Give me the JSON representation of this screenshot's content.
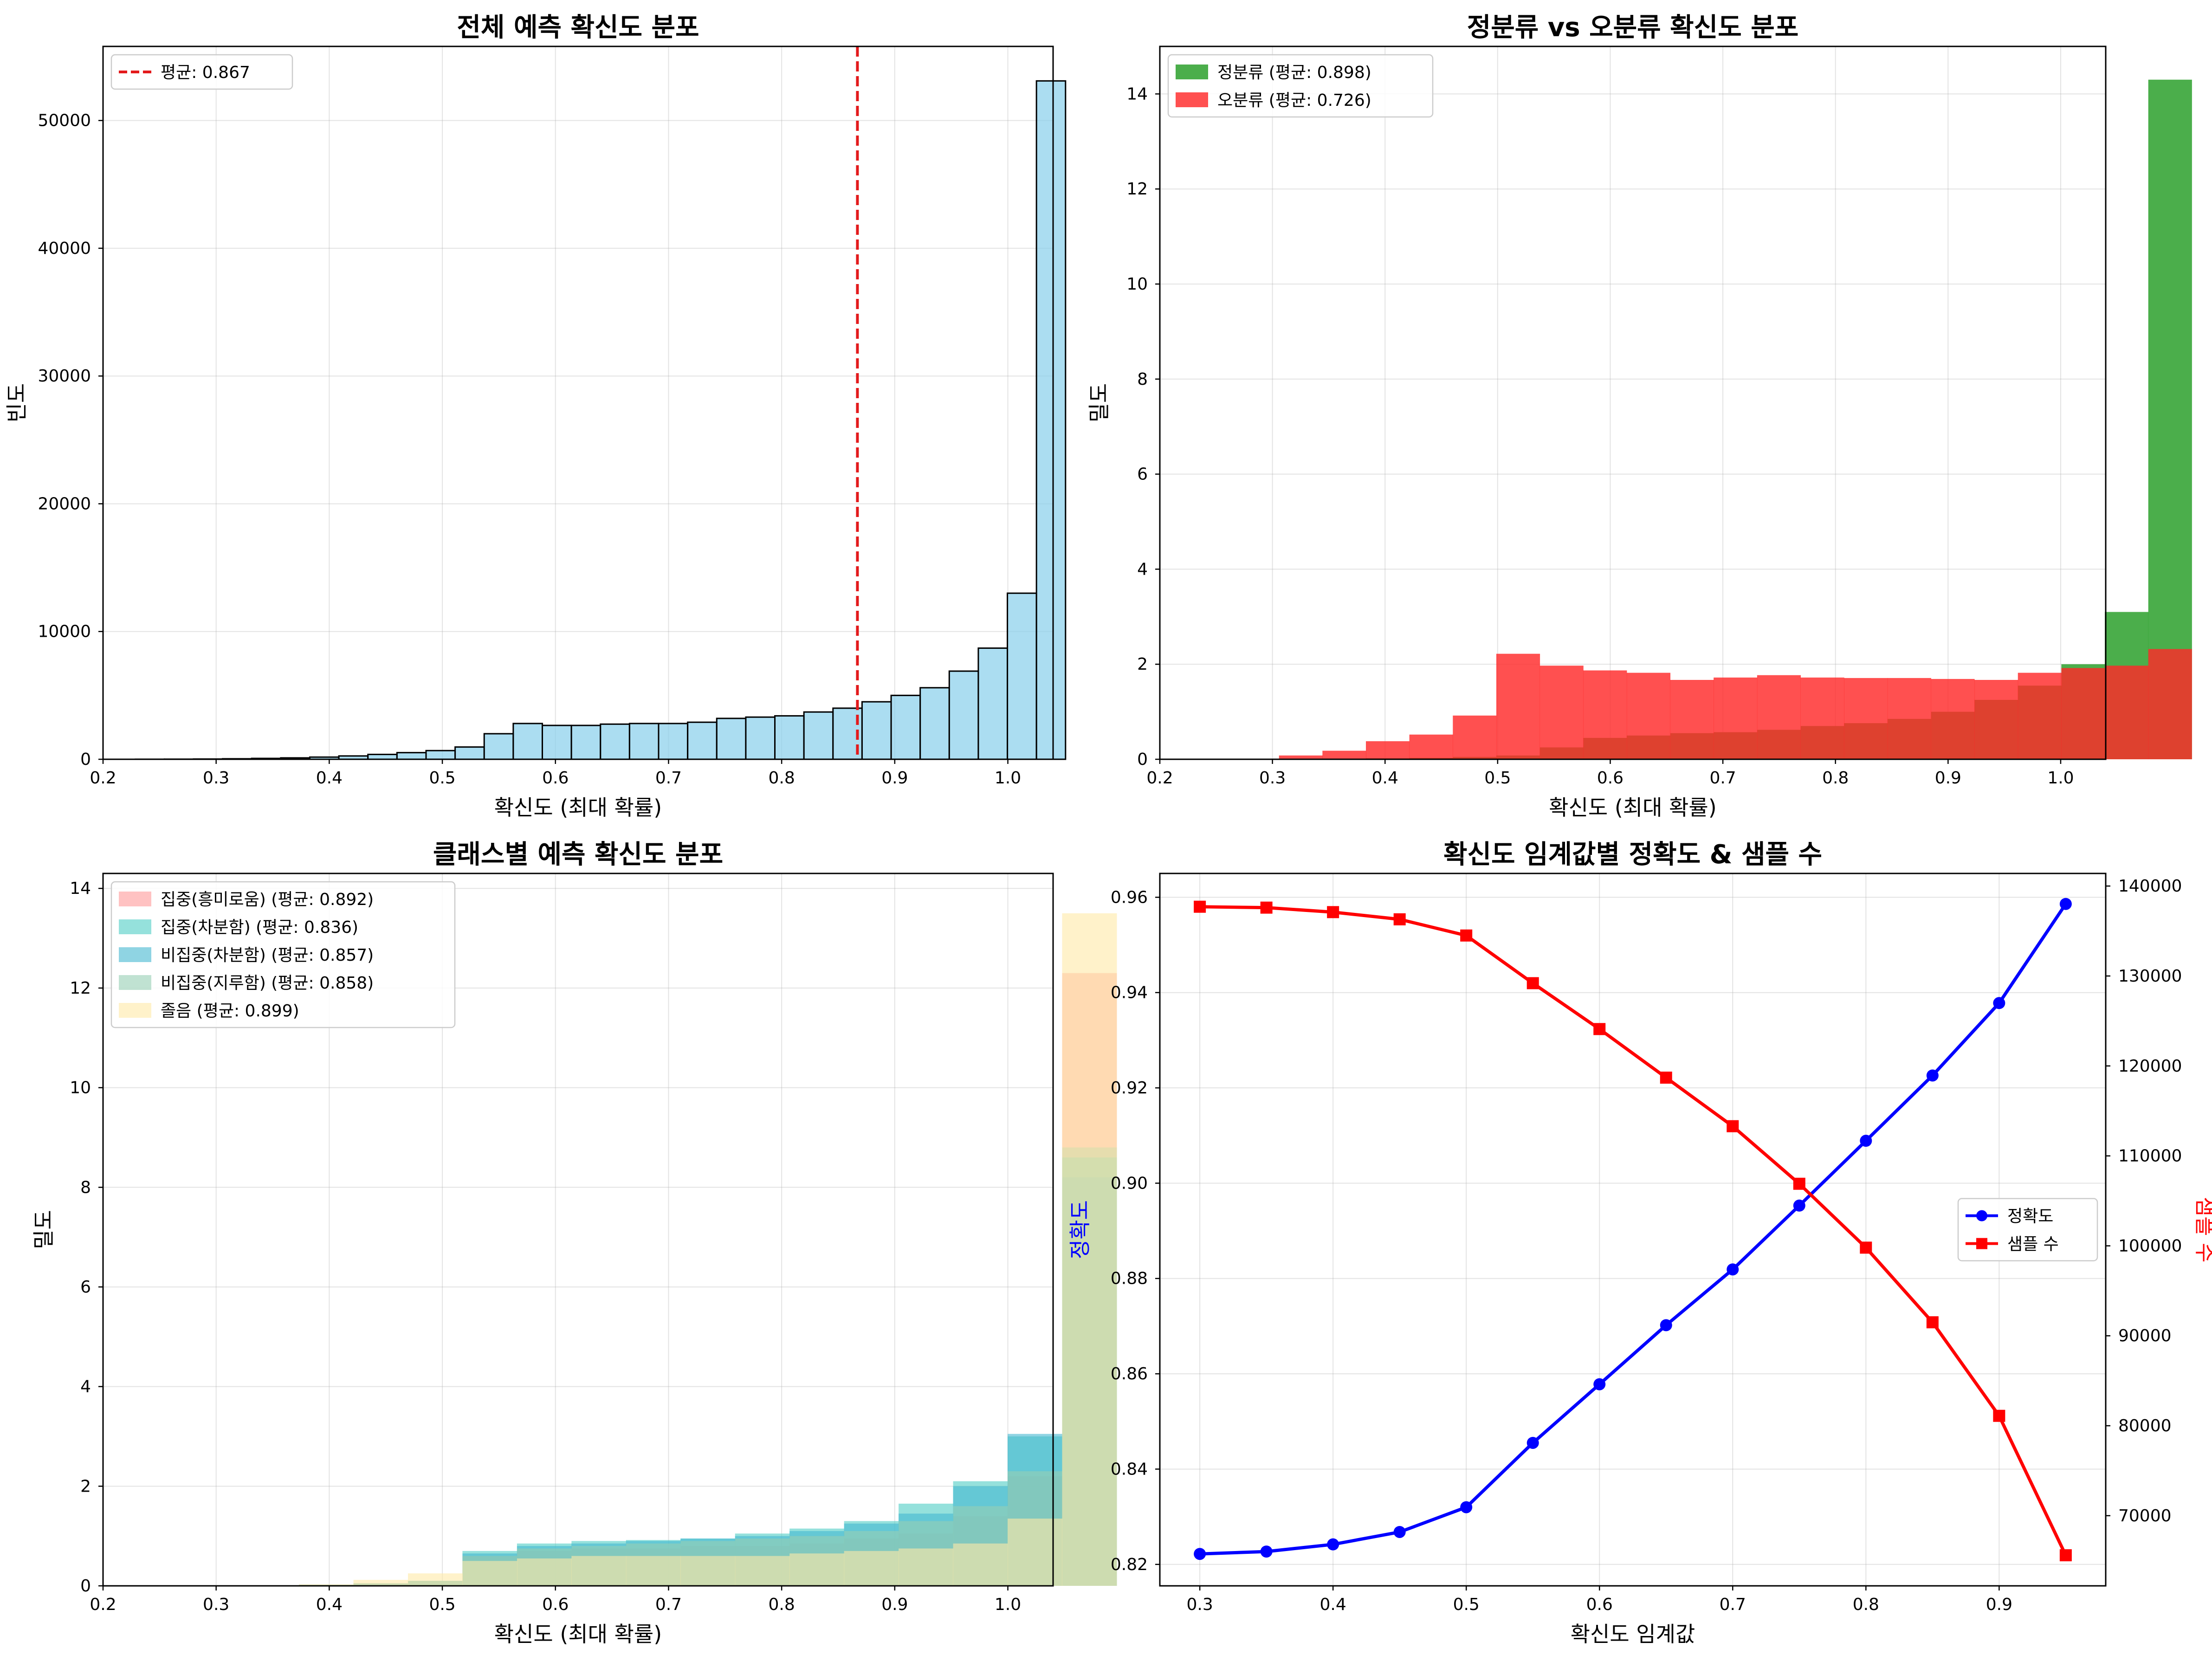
{
  "chart_data": [
    {
      "id": "p1",
      "type": "bar",
      "title": "전체 예측 확신도 분포",
      "xlabel": "확신도 (최대 확률)",
      "ylabel": "빈도",
      "xlim": [
        0.2,
        1.04
      ],
      "ylim": [
        0,
        55800
      ],
      "xticks": [
        0.2,
        0.3,
        0.4,
        0.5,
        0.6,
        0.7,
        0.8,
        0.9,
        1.0
      ],
      "xtick_labels": [
        "0.2",
        "0.3",
        "0.4",
        "0.5",
        "0.6",
        "0.7",
        "0.8",
        "0.9",
        "1.0"
      ],
      "yticks": [
        0,
        10000,
        20000,
        30000,
        40000,
        50000
      ],
      "ytick_labels": [
        "0",
        "10000",
        "20000",
        "30000",
        "40000",
        "50000"
      ],
      "grid": true,
      "legend_position": "top-left",
      "bin_start": 0.2286,
      "bin_width": 0.0257,
      "color": "#87CEEB",
      "edgecolor": "#000000",
      "values": [
        5,
        10,
        20,
        40,
        70,
        110,
        170,
        260,
        380,
        520,
        680,
        960,
        2000,
        2800,
        2650,
        2650,
        2750,
        2800,
        2800,
        2900,
        3200,
        3300,
        3400,
        3700,
        4000,
        4500,
        5000,
        5600,
        6900,
        8700,
        13000,
        53100
      ],
      "mean_line": {
        "value": 0.867,
        "label": "평균: 0.867",
        "color": "#e31a1c"
      }
    },
    {
      "id": "p2",
      "type": "bar",
      "title": "정분류 vs 오분류 확신도 분포",
      "xlabel": "확신도 (최대 확률)",
      "ylabel": "밀도",
      "xlim": [
        0.2,
        1.04
      ],
      "ylim": [
        0,
        15
      ],
      "xticks": [
        0.2,
        0.3,
        0.4,
        0.5,
        0.6,
        0.7,
        0.8,
        0.9,
        1.0
      ],
      "xtick_labels": [
        "0.2",
        "0.3",
        "0.4",
        "0.5",
        "0.6",
        "0.7",
        "0.8",
        "0.9",
        "1.0"
      ],
      "yticks": [
        0,
        2,
        4,
        6,
        8,
        10,
        12,
        14
      ],
      "ytick_labels": [
        "0",
        "2",
        "4",
        "6",
        "8",
        "10",
        "12",
        "14"
      ],
      "grid": true,
      "legend_position": "top-left",
      "series": [
        {
          "name": "정분류 (평균: 0.898)",
          "color": "#2ca02c",
          "opacity": 0.85,
          "bin_start": 0.2286,
          "bin_width": 0.0386,
          "values": [
            0,
            0,
            0,
            0.01,
            0.02,
            0.03,
            0.05,
            0.08,
            0.25,
            0.45,
            0.5,
            0.55,
            0.57,
            0.62,
            0.7,
            0.76,
            0.85,
            1.0,
            1.25,
            1.55,
            2.0,
            3.1,
            14.3
          ]
        },
        {
          "name": "오분류 (평균: 0.726)",
          "color": "#ff2a2a",
          "opacity": 0.82,
          "bin_start": 0.2286,
          "bin_width": 0.0386,
          "values": [
            0,
            0,
            0.08,
            0.18,
            0.38,
            0.52,
            0.92,
            2.22,
            1.97,
            1.87,
            1.82,
            1.67,
            1.72,
            1.77,
            1.72,
            1.71,
            1.71,
            1.69,
            1.67,
            1.82,
            1.92,
            1.97,
            2.32
          ]
        }
      ]
    },
    {
      "id": "p3",
      "type": "bar",
      "title": "클래스별 예측 확신도 분포",
      "xlabel": "확신도 (최대 확률)",
      "ylabel": "밀도",
      "xlim": [
        0.2,
        1.04
      ],
      "ylim": [
        0,
        14.3
      ],
      "xticks": [
        0.2,
        0.3,
        0.4,
        0.5,
        0.6,
        0.7,
        0.8,
        0.9,
        1.0
      ],
      "xtick_labels": [
        "0.2",
        "0.3",
        "0.4",
        "0.5",
        "0.6",
        "0.7",
        "0.8",
        "0.9",
        "1.0"
      ],
      "yticks": [
        0,
        2,
        4,
        6,
        8,
        10,
        12,
        14
      ],
      "ytick_labels": [
        "0",
        "2",
        "4",
        "6",
        "8",
        "10",
        "12",
        "14"
      ],
      "grid": true,
      "legend_position": "top-left",
      "bin_start": 0.2286,
      "bin_width": 0.0482,
      "series": [
        {
          "name": "집중(흥미로움) (평균: 0.892)",
          "color": "#ff9999",
          "values": [
            0,
            0,
            0,
            0.02,
            0.05,
            0.1,
            0.6,
            0.7,
            0.75,
            0.75,
            0.8,
            0.8,
            0.85,
            0.95,
            1.05,
            1.4,
            2.2,
            12.3
          ]
        },
        {
          "name": "집중(차분함) (평균: 0.836)",
          "color": "#4ecdc4",
          "values": [
            0,
            0,
            0,
            0.02,
            0.05,
            0.1,
            0.7,
            0.85,
            0.9,
            0.92,
            0.95,
            1.05,
            1.15,
            1.3,
            1.65,
            2.1,
            3.0,
            8.6
          ]
        },
        {
          "name": "비집중(차분함) (평균: 0.857)",
          "color": "#45b7d1",
          "values": [
            0,
            0,
            0,
            0.02,
            0.05,
            0.1,
            0.65,
            0.8,
            0.85,
            0.9,
            0.95,
            1.0,
            1.1,
            1.25,
            1.45,
            2.0,
            3.05,
            8.2
          ]
        },
        {
          "name": "비집중(지루함) (평균: 0.858)",
          "color": "#96ceb4",
          "values": [
            0,
            0,
            0,
            0.02,
            0.05,
            0.1,
            0.6,
            0.75,
            0.8,
            0.85,
            0.9,
            0.95,
            1.0,
            1.1,
            1.3,
            1.6,
            2.3,
            8.8
          ]
        },
        {
          "name": "졸음 (평균: 0.899)",
          "color": "#ffeaa7",
          "values": [
            0,
            0,
            0,
            0.03,
            0.12,
            0.25,
            0.5,
            0.55,
            0.6,
            0.6,
            0.6,
            0.6,
            0.65,
            0.7,
            0.75,
            0.85,
            1.35,
            13.5
          ]
        }
      ]
    },
    {
      "id": "p4",
      "type": "line",
      "title": "확신도 임계값별 정확도 & 샘플 수",
      "xlabel": "확신도 임계값",
      "ylabel": "정확도",
      "ylabel_right": "샘플 수",
      "x": [
        0.3,
        0.35,
        0.4,
        0.45,
        0.5,
        0.55,
        0.6,
        0.65,
        0.7,
        0.75,
        0.8,
        0.85,
        0.9,
        0.95
      ],
      "xlim": [
        0.27,
        0.98
      ],
      "ylim": [
        0.8155,
        0.965
      ],
      "ylim_right": [
        62200,
        141400
      ],
      "xticks": [
        0.3,
        0.4,
        0.5,
        0.6,
        0.7,
        0.8,
        0.9
      ],
      "xtick_labels": [
        "0.3",
        "0.4",
        "0.5",
        "0.6",
        "0.7",
        "0.8",
        "0.9"
      ],
      "yticks": [
        0.82,
        0.84,
        0.86,
        0.88,
        0.9,
        0.92,
        0.94,
        0.96
      ],
      "ytick_labels": [
        "0.82",
        "0.84",
        "0.86",
        "0.88",
        "0.90",
        "0.92",
        "0.94",
        "0.96"
      ],
      "yticks_right": [
        70000,
        80000,
        90000,
        100000,
        110000,
        120000,
        130000,
        140000
      ],
      "ytick_labels_right": [
        "70000",
        "80000",
        "90000",
        "100000",
        "110000",
        "120000",
        "130000",
        "140000"
      ],
      "grid": true,
      "legend_position": "center-right",
      "series": [
        {
          "name": "정확도",
          "color": "#0000ff",
          "marker": "circle",
          "axis": "left",
          "values": [
            0.8222,
            0.8227,
            0.8242,
            0.8268,
            0.832,
            0.8455,
            0.8578,
            0.8702,
            0.8819,
            0.8953,
            0.9089,
            0.9226,
            0.9378,
            0.9586
          ]
        },
        {
          "name": "샘플 수",
          "color": "#ff0000",
          "marker": "square",
          "axis": "right",
          "values": [
            137700,
            137600,
            137100,
            136300,
            134500,
            129200,
            124100,
            118700,
            113300,
            106900,
            99800,
            91500,
            81100,
            65600
          ]
        }
      ]
    }
  ]
}
